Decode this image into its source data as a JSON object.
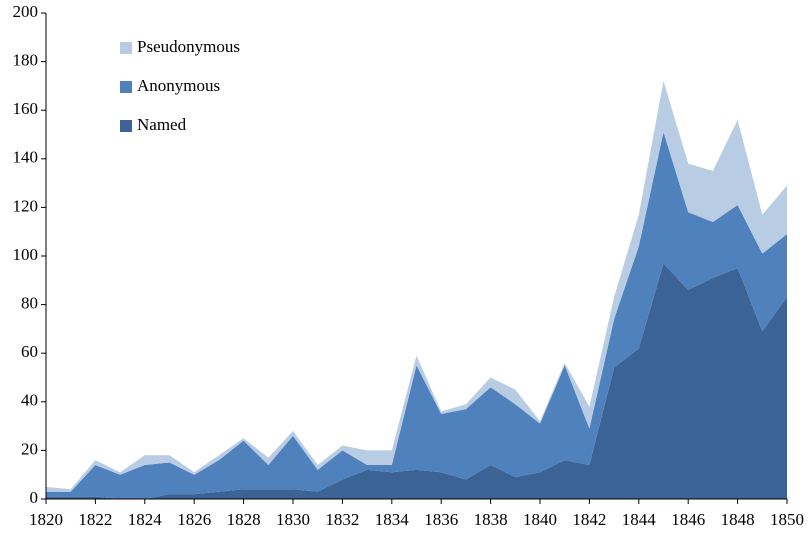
{
  "chart_data": {
    "type": "stacked_area",
    "x": [
      1820,
      1821,
      1822,
      1823,
      1824,
      1825,
      1826,
      1827,
      1828,
      1829,
      1830,
      1831,
      1832,
      1833,
      1834,
      1835,
      1836,
      1837,
      1838,
      1839,
      1840,
      1841,
      1842,
      1843,
      1844,
      1845,
      1846,
      1847,
      1848,
      1849,
      1850
    ],
    "series": [
      {
        "name": "Named",
        "color": "#3b6395",
        "values": [
          1,
          1,
          1,
          0,
          0,
          2,
          2,
          3,
          4,
          4,
          4,
          3,
          8,
          12,
          11,
          12,
          11,
          8,
          14,
          9,
          11,
          16,
          14,
          54,
          62,
          97,
          86,
          91,
          95,
          69,
          83
        ]
      },
      {
        "name": "Anonymous",
        "color": "#4f81bd",
        "values": [
          2,
          2,
          13,
          10,
          14,
          13,
          8,
          13,
          20,
          10,
          22,
          9,
          12,
          2,
          3,
          43,
          24,
          29,
          32,
          30,
          20,
          39,
          15,
          20,
          42,
          54,
          32,
          23,
          26,
          32,
          26
        ]
      },
      {
        "name": "Pseudonymous",
        "color": "#b8cce4",
        "values": [
          2,
          1,
          2,
          1,
          4,
          3,
          1,
          2,
          1,
          3,
          2,
          2,
          2,
          6,
          6,
          4,
          1,
          2,
          4,
          6,
          1,
          1,
          9,
          9,
          13,
          21,
          20,
          21,
          35,
          16,
          20
        ]
      }
    ],
    "xlim": [
      1820,
      1850
    ],
    "xticks": [
      1820,
      1822,
      1824,
      1826,
      1828,
      1830,
      1832,
      1834,
      1836,
      1838,
      1840,
      1842,
      1844,
      1846,
      1848,
      1850
    ],
    "ylim": [
      0,
      200
    ],
    "yticks": [
      0,
      20,
      40,
      60,
      80,
      100,
      120,
      140,
      160,
      180,
      200
    ],
    "grid": false,
    "legend": "upper left"
  }
}
